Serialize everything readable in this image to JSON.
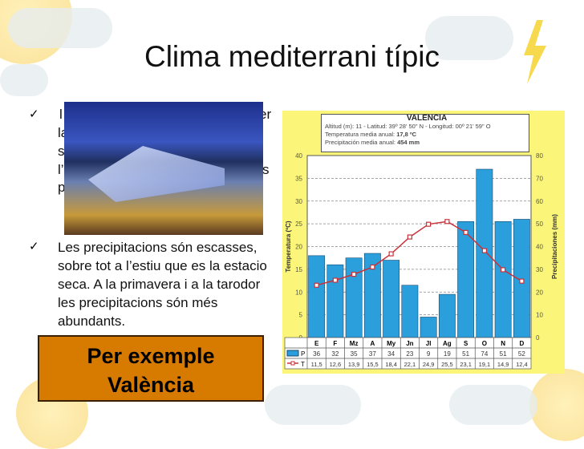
{
  "slide": {
    "title": "Clima mediterrani típic",
    "bullet1_fragments": [
      "l",
      "er",
      "la",
      "s",
      "l’",
      "s",
      "p"
    ],
    "bullet2_lines": [
      "Les precipitacions són escasses,",
      "sobre tot a l’estiu que es la estacio",
      "seca. A la primavera i a la tarodor",
      "les precipitacions són més",
      "abundants."
    ],
    "example_lines": [
      "Per exemple",
      "València"
    ],
    "check_icon": "checkmark-icon",
    "bullet_marker": "✓"
  },
  "chart_data": {
    "type": "bar+line",
    "title": "VALENCIA",
    "info": [
      "Altitud (m): 11 - Latitud: 39º 28' 50\" N - Longitud: 00º 21' 59\" O",
      "Temperatura media anual: ",
      "17,8 ºC",
      "Precipitación media anual: ",
      "454 mm"
    ],
    "categories": [
      "E",
      "F",
      "Mz",
      "A",
      "My",
      "Jn",
      "Jl",
      "Ag",
      "S",
      "O",
      "N",
      "D"
    ],
    "series": [
      {
        "name": "P",
        "type": "bar",
        "axis": "right",
        "color": "#2a9fdc",
        "values": [
          36,
          32,
          35,
          37,
          34,
          23,
          9,
          19,
          51,
          74,
          51,
          52
        ],
        "labels": [
          "36",
          "32",
          "35",
          "37",
          "34",
          "23",
          "9",
          "19",
          "51",
          "74",
          "51",
          "52"
        ]
      },
      {
        "name": "T",
        "type": "line",
        "axis": "left",
        "color": "#c8323a",
        "values": [
          11.5,
          12.6,
          13.9,
          15.5,
          18.4,
          22.1,
          24.9,
          25.5,
          23.1,
          19.1,
          14.9,
          12.4
        ],
        "labels": [
          "11,5",
          "12,6",
          "13,9",
          "15,5",
          "18,4",
          "22,1",
          "24,9",
          "25,5",
          "23,1",
          "19,1",
          "14,9",
          "12,4"
        ]
      }
    ],
    "ylabel_left": "Temperatura (ºC)",
    "ylim_left": [
      0,
      40
    ],
    "yticks_left": [
      "0",
      "5",
      "10",
      "15",
      "20",
      "25",
      "30",
      "35",
      "40"
    ],
    "ylabel_right": "Precipitaciones (mm)",
    "ylim_right": [
      0,
      80
    ],
    "yticks_right": [
      "0",
      "10",
      "20",
      "30",
      "40",
      "50",
      "60",
      "70",
      "80"
    ],
    "grid": true
  }
}
